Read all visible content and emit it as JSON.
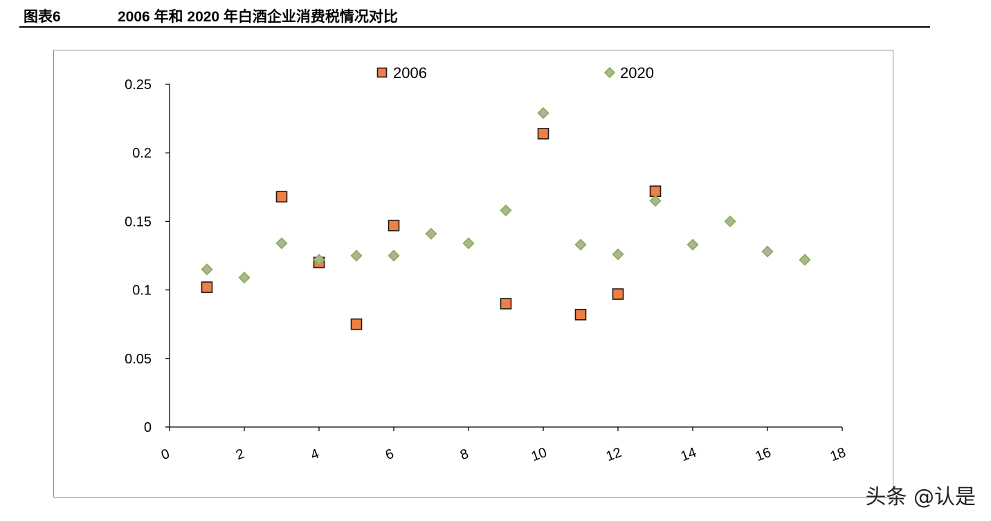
{
  "header": {
    "figure_number": "图表6",
    "figure_title": "2006 年和 2020 年白酒企业消费税情况对比"
  },
  "watermark": "头条 @认是",
  "colors": {
    "series_2006_fill": "#F07F43",
    "series_2006_stroke": "#1a1a1a",
    "series_2020_fill": "#A9B39E",
    "series_2020_stroke": "#8DB040",
    "axis": "#000000",
    "frame": "#8c8c8c"
  },
  "chart_data": {
    "type": "scatter",
    "title": "",
    "xlabel": "",
    "ylabel": "",
    "xlim": [
      0,
      18
    ],
    "ylim": [
      0,
      0.25
    ],
    "x_ticks": [
      0,
      2,
      4,
      6,
      8,
      10,
      12,
      14,
      16,
      18
    ],
    "x_tick_labels": [
      "0",
      "2",
      "4",
      "6",
      "8",
      "10",
      "12",
      "14",
      "16",
      "18"
    ],
    "y_ticks": [
      0,
      0.05,
      0.1,
      0.15,
      0.2,
      0.25
    ],
    "y_tick_labels": [
      "0",
      "0.05",
      "0.1",
      "0.15",
      "0.2",
      "0.25"
    ],
    "grid": false,
    "legend_position": "top",
    "series": [
      {
        "name": "2006",
        "marker": "square",
        "points": [
          {
            "x": 1,
            "y": 0.102
          },
          {
            "x": 3,
            "y": 0.168
          },
          {
            "x": 4,
            "y": 0.12
          },
          {
            "x": 5,
            "y": 0.075
          },
          {
            "x": 6,
            "y": 0.147
          },
          {
            "x": 9,
            "y": 0.09
          },
          {
            "x": 10,
            "y": 0.214
          },
          {
            "x": 11,
            "y": 0.082
          },
          {
            "x": 12,
            "y": 0.097
          },
          {
            "x": 13,
            "y": 0.172
          }
        ]
      },
      {
        "name": "2020",
        "marker": "diamond",
        "points": [
          {
            "x": 1,
            "y": 0.115
          },
          {
            "x": 2,
            "y": 0.109
          },
          {
            "x": 3,
            "y": 0.134
          },
          {
            "x": 4,
            "y": 0.122
          },
          {
            "x": 5,
            "y": 0.125
          },
          {
            "x": 6,
            "y": 0.125
          },
          {
            "x": 7,
            "y": 0.141
          },
          {
            "x": 8,
            "y": 0.134
          },
          {
            "x": 9,
            "y": 0.158
          },
          {
            "x": 10,
            "y": 0.229
          },
          {
            "x": 11,
            "y": 0.133
          },
          {
            "x": 12,
            "y": 0.126
          },
          {
            "x": 13,
            "y": 0.165
          },
          {
            "x": 14,
            "y": 0.133
          },
          {
            "x": 15,
            "y": 0.15
          },
          {
            "x": 16,
            "y": 0.128
          },
          {
            "x": 17,
            "y": 0.122
          }
        ]
      }
    ]
  }
}
